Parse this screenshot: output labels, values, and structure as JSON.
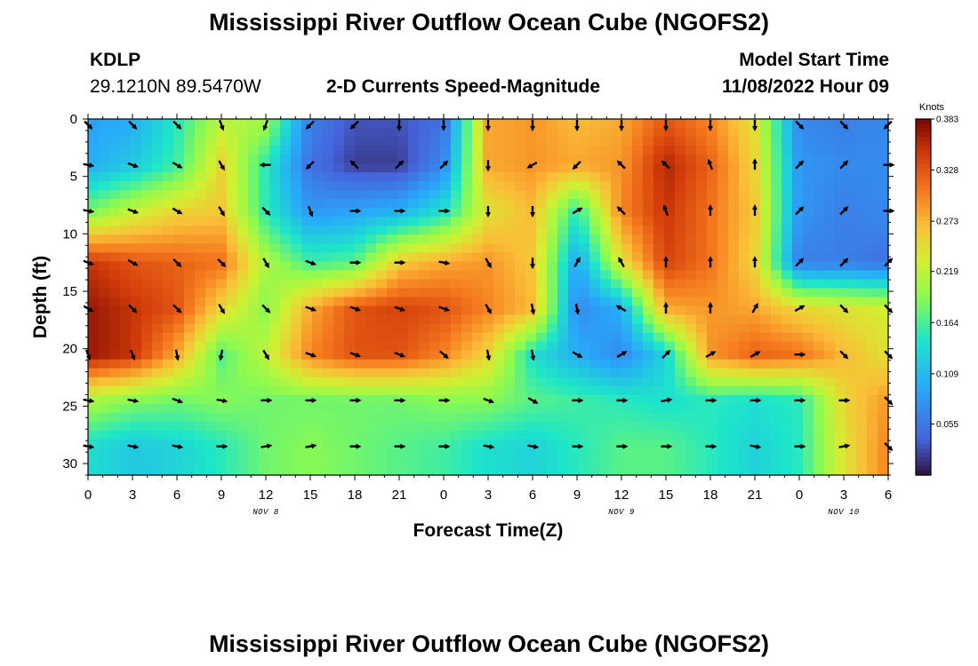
{
  "page": {
    "title": "Mississippi River Outflow Ocean Cube (NGOFS2)",
    "bottom_title": "Mississippi River Outflow Ocean Cube (NGOFS2)"
  },
  "station": {
    "id": "KDLP",
    "coords": "29.1210N  89.5470W"
  },
  "plot": {
    "subtitle": "2-D Currents Speed-Magnitude"
  },
  "model": {
    "label": "Model Start Time",
    "time": "11/08/2022 Hour 09"
  },
  "chart_data": {
    "type": "heatmap",
    "title": "2-D Currents Speed-Magnitude",
    "xlabel": "Forecast Time(Z)",
    "ylabel": "Depth (ft)",
    "x_tick_labels": [
      "0",
      "3",
      "6",
      "9",
      "12",
      "15",
      "18",
      "21",
      "0",
      "3",
      "6",
      "9",
      "12",
      "15",
      "18",
      "21",
      "0",
      "3",
      "6"
    ],
    "x_hours": [
      0,
      54
    ],
    "date_labels": [
      {
        "text": "NOV 8",
        "hour": 12
      },
      {
        "text": "NOV 9",
        "hour": 36
      },
      {
        "text": "NOV 10",
        "hour": 51
      }
    ],
    "y_ticks": [
      0,
      5,
      10,
      15,
      20,
      25,
      30
    ],
    "ylim": [
      0,
      31
    ],
    "colorbar": {
      "unit": "Knots",
      "ticks": [
        "0.383",
        "0.328",
        "0.273",
        "0.219",
        "0.164",
        "0.109",
        "0.055"
      ],
      "range": [
        0,
        0.383
      ]
    },
    "arrow_depths": [
      0.5,
      4,
      8,
      12.5,
      16.5,
      20.5,
      24.5,
      28.5
    ],
    "arrow_times": [
      0,
      3,
      6,
      9,
      12,
      15,
      18,
      21,
      24,
      27,
      30,
      33,
      36,
      39,
      42,
      45,
      48,
      51,
      54
    ],
    "speed_field": [
      [
        0.09,
        0.1,
        0.15,
        0.22,
        0.2,
        0.06,
        0.03,
        0.03,
        0.05,
        0.28,
        0.29,
        0.27,
        0.28,
        0.33,
        0.3,
        0.24,
        0.07,
        0.06,
        0.07
      ],
      [
        0.1,
        0.12,
        0.16,
        0.25,
        0.15,
        0.05,
        0.02,
        0.02,
        0.07,
        0.28,
        0.29,
        0.28,
        0.29,
        0.36,
        0.32,
        0.25,
        0.08,
        0.07,
        0.07
      ],
      [
        0.18,
        0.22,
        0.25,
        0.26,
        0.15,
        0.08,
        0.09,
        0.1,
        0.14,
        0.24,
        0.27,
        0.15,
        0.3,
        0.35,
        0.31,
        0.26,
        0.08,
        0.06,
        0.07
      ],
      [
        0.35,
        0.33,
        0.32,
        0.31,
        0.21,
        0.16,
        0.17,
        0.26,
        0.28,
        0.29,
        0.26,
        0.09,
        0.24,
        0.34,
        0.31,
        0.25,
        0.06,
        0.06,
        0.05
      ],
      [
        0.37,
        0.35,
        0.33,
        0.25,
        0.19,
        0.28,
        0.33,
        0.34,
        0.33,
        0.3,
        0.27,
        0.07,
        0.1,
        0.28,
        0.29,
        0.28,
        0.25,
        0.24,
        0.23
      ],
      [
        0.37,
        0.35,
        0.28,
        0.17,
        0.22,
        0.3,
        0.33,
        0.33,
        0.3,
        0.25,
        0.14,
        0.1,
        0.07,
        0.13,
        0.29,
        0.32,
        0.31,
        0.27,
        0.24
      ],
      [
        0.21,
        0.19,
        0.18,
        0.19,
        0.18,
        0.18,
        0.18,
        0.18,
        0.19,
        0.19,
        0.17,
        0.16,
        0.15,
        0.14,
        0.15,
        0.14,
        0.15,
        0.25,
        0.29
      ],
      [
        0.14,
        0.12,
        0.13,
        0.15,
        0.18,
        0.19,
        0.18,
        0.17,
        0.16,
        0.14,
        0.13,
        0.15,
        0.17,
        0.17,
        0.15,
        0.13,
        0.15,
        0.24,
        0.3
      ]
    ],
    "arrow_dirs": [
      [
        135,
        135,
        135,
        160,
        200,
        225,
        225,
        180,
        180,
        180,
        180,
        180,
        180,
        180,
        180,
        180,
        135,
        135,
        225
      ],
      [
        100,
        110,
        120,
        150,
        270,
        225,
        315,
        45,
        45,
        180,
        240,
        225,
        315,
        315,
        340,
        0,
        45,
        45,
        90
      ],
      [
        100,
        110,
        120,
        150,
        135,
        160,
        90,
        90,
        90,
        180,
        180,
        60,
        315,
        340,
        0,
        0,
        45,
        45,
        90
      ],
      [
        110,
        120,
        135,
        135,
        150,
        110,
        90,
        90,
        100,
        150,
        180,
        30,
        330,
        0,
        0,
        0,
        45,
        45,
        45
      ],
      [
        120,
        135,
        135,
        150,
        135,
        110,
        110,
        110,
        110,
        150,
        170,
        170,
        300,
        0,
        0,
        30,
        60,
        135,
        135
      ],
      [
        160,
        160,
        170,
        190,
        150,
        110,
        110,
        110,
        130,
        170,
        170,
        120,
        60,
        45,
        60,
        60,
        90,
        135,
        135
      ],
      [
        100,
        100,
        110,
        100,
        90,
        90,
        90,
        90,
        90,
        110,
        120,
        90,
        90,
        80,
        90,
        90,
        90,
        90,
        135
      ],
      [
        100,
        100,
        100,
        90,
        80,
        80,
        90,
        90,
        90,
        100,
        100,
        90,
        90,
        90,
        90,
        100,
        90,
        80,
        135
      ]
    ]
  }
}
